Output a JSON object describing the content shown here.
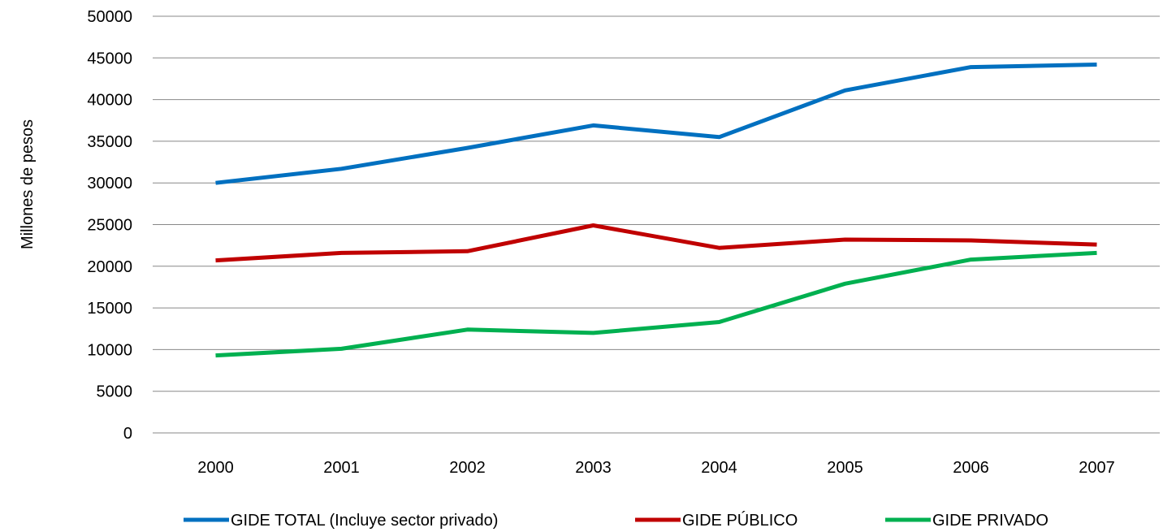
{
  "chart_data": {
    "type": "line",
    "title": "",
    "xlabel": "",
    "ylabel": "Millones de pesos",
    "ylim": [
      0,
      50000
    ],
    "yticks": [
      0,
      5000,
      10000,
      15000,
      20000,
      25000,
      30000,
      35000,
      40000,
      45000,
      50000
    ],
    "grid": true,
    "legend_position": "bottom",
    "categories": [
      "2000",
      "2001",
      "2002",
      "2003",
      "2004",
      "2005",
      "2006",
      "2007"
    ],
    "series": [
      {
        "name": "GIDE TOTAL (Incluye sector privado)",
        "color": "#0070C0",
        "values": [
          30000,
          31700,
          34200,
          36900,
          35500,
          41100,
          43900,
          44200
        ]
      },
      {
        "name": "GIDE PÚBLICO",
        "color": "#C00000",
        "values": [
          20700,
          21600,
          21800,
          24900,
          22200,
          23200,
          23100,
          22600
        ]
      },
      {
        "name": "GIDE PRIVADO",
        "color": "#00B050",
        "values": [
          9300,
          10100,
          12400,
          12000,
          13300,
          17900,
          20800,
          21600
        ]
      }
    ]
  }
}
